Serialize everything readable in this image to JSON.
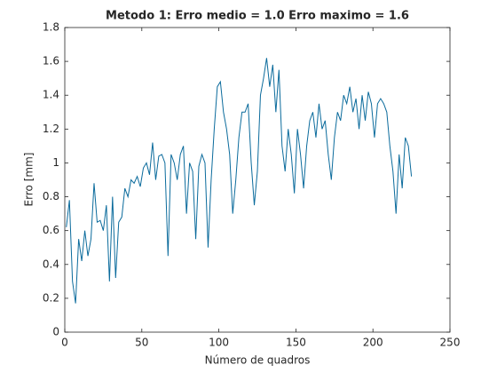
{
  "chart_data": {
    "type": "line",
    "title": "Metodo 1: Erro medio = 1.0 Erro maximo = 1.6",
    "x_label": "Número de quadros",
    "y_label": "Erro [mm]",
    "xlim": [
      0,
      250
    ],
    "xticks": [
      0,
      50,
      100,
      150,
      200,
      250
    ],
    "ylim": [
      0,
      1.8
    ],
    "yticks": [
      0,
      0.2,
      0.4,
      0.6,
      0.8,
      1,
      1.2,
      1.4,
      1.6,
      1.8
    ],
    "x": [
      1,
      3,
      5,
      7,
      9,
      11,
      13,
      15,
      17,
      19,
      21,
      23,
      25,
      27,
      29,
      31,
      33,
      35,
      37,
      39,
      41,
      43,
      45,
      47,
      49,
      51,
      53,
      55,
      57,
      59,
      61,
      63,
      65,
      67,
      69,
      71,
      73,
      75,
      77,
      79,
      81,
      83,
      85,
      87,
      89,
      91,
      93,
      95,
      97,
      99,
      101,
      103,
      105,
      107,
      109,
      111,
      113,
      115,
      117,
      119,
      121,
      123,
      125,
      127,
      129,
      131,
      133,
      135,
      137,
      139,
      141,
      143,
      145,
      147,
      149,
      151,
      153,
      155,
      157,
      159,
      161,
      163,
      165,
      167,
      169,
      171,
      173,
      175,
      177,
      179,
      181,
      183,
      185,
      187,
      189,
      191,
      193,
      195,
      197,
      199,
      201,
      203,
      205,
      207,
      209,
      211,
      213,
      215,
      217,
      219,
      221,
      223,
      225
    ],
    "series": [
      {
        "color": "#0b6b9c",
        "values": [
          0.62,
          0.78,
          0.3,
          0.17,
          0.55,
          0.42,
          0.6,
          0.45,
          0.55,
          0.88,
          0.65,
          0.66,
          0.6,
          0.75,
          0.3,
          0.8,
          0.32,
          0.65,
          0.68,
          0.85,
          0.8,
          0.9,
          0.88,
          0.92,
          0.86,
          0.97,
          1.0,
          0.93,
          1.12,
          0.9,
          1.04,
          1.05,
          1.0,
          0.45,
          1.05,
          1.0,
          0.9,
          1.05,
          1.1,
          0.7,
          1.0,
          0.95,
          0.55,
          0.98,
          1.05,
          1.0,
          0.5,
          0.9,
          1.2,
          1.45,
          1.48,
          1.3,
          1.2,
          1.05,
          0.7,
          0.9,
          1.15,
          1.3,
          1.3,
          1.35,
          1.0,
          0.75,
          0.95,
          1.4,
          1.5,
          1.62,
          1.45,
          1.58,
          1.3,
          1.55,
          1.1,
          0.95,
          1.2,
          1.05,
          0.82,
          1.2,
          1.05,
          0.85,
          1.1,
          1.25,
          1.3,
          1.15,
          1.35,
          1.2,
          1.25,
          1.05,
          0.9,
          1.15,
          1.3,
          1.25,
          1.4,
          1.35,
          1.45,
          1.3,
          1.38,
          1.2,
          1.4,
          1.25,
          1.42,
          1.35,
          1.15,
          1.35,
          1.38,
          1.35,
          1.3,
          1.1,
          0.95,
          0.7,
          1.05,
          0.85,
          1.15,
          1.1,
          0.92
        ]
      }
    ]
  }
}
